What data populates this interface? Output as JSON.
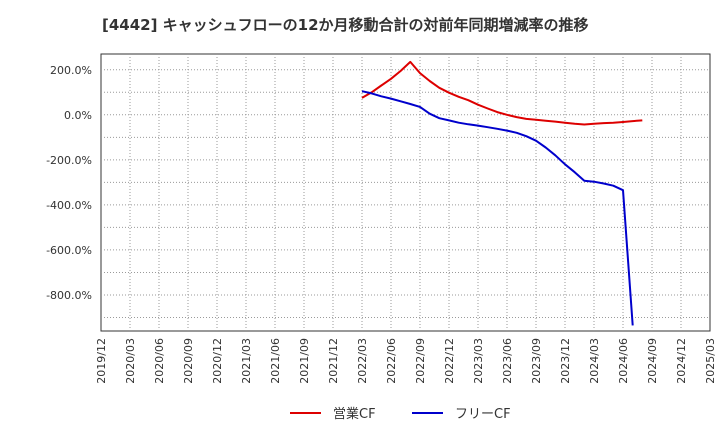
{
  "chart_data": {
    "type": "line",
    "title": "[4442]  キャッシュフローの12か月移動合計の対前年同期増減率の推移",
    "xlabel": "",
    "ylabel": "",
    "ylim": [
      -960,
      270
    ],
    "yticks": [
      200,
      0,
      -200,
      -400,
      -600,
      -800
    ],
    "ytick_labels": [
      "200.0%",
      "0.0%",
      "-200.0%",
      "-400.0%",
      "-600.0%",
      "-800.0%"
    ],
    "x_tick_labels": [
      "2019/12",
      "2020/03",
      "2020/06",
      "2020/09",
      "2020/12",
      "2021/03",
      "2021/06",
      "2021/09",
      "2021/12",
      "2022/03",
      "2022/06",
      "2022/09",
      "2022/12",
      "2023/03",
      "2023/06",
      "2023/09",
      "2023/12",
      "2024/03",
      "2024/06",
      "2024/09",
      "2024/12",
      "2025/03"
    ],
    "x_range_months": [
      0,
      63
    ],
    "grid": true,
    "legend_position": "bottom-center",
    "series": [
      {
        "name": "営業CF",
        "color": "#dd0000",
        "points": [
          [
            27,
            75
          ],
          [
            28,
            100
          ],
          [
            29,
            130
          ],
          [
            30,
            160
          ],
          [
            31,
            195
          ],
          [
            32,
            235
          ],
          [
            33,
            185
          ],
          [
            34,
            150
          ],
          [
            35,
            120
          ],
          [
            36,
            98
          ],
          [
            37,
            80
          ],
          [
            38,
            65
          ],
          [
            39,
            45
          ],
          [
            40,
            28
          ],
          [
            41,
            12
          ],
          [
            42,
            0
          ],
          [
            43,
            -10
          ],
          [
            44,
            -18
          ],
          [
            45,
            -22
          ],
          [
            46,
            -26
          ],
          [
            47,
            -30
          ],
          [
            48,
            -35
          ],
          [
            49,
            -40
          ],
          [
            50,
            -43
          ],
          [
            51,
            -40
          ],
          [
            52,
            -37
          ],
          [
            53,
            -35
          ],
          [
            54,
            -32
          ],
          [
            55,
            -28
          ],
          [
            56,
            -25
          ]
        ]
      },
      {
        "name": "フリーCF",
        "color": "#0000cc",
        "points": [
          [
            27,
            105
          ],
          [
            28,
            95
          ],
          [
            29,
            82
          ],
          [
            30,
            72
          ],
          [
            31,
            60
          ],
          [
            32,
            48
          ],
          [
            33,
            35
          ],
          [
            34,
            5
          ],
          [
            35,
            -15
          ],
          [
            36,
            -25
          ],
          [
            37,
            -35
          ],
          [
            38,
            -42
          ],
          [
            39,
            -48
          ],
          [
            40,
            -55
          ],
          [
            41,
            -62
          ],
          [
            42,
            -70
          ],
          [
            43,
            -80
          ],
          [
            44,
            -95
          ],
          [
            45,
            -115
          ],
          [
            46,
            -145
          ],
          [
            47,
            -180
          ],
          [
            48,
            -220
          ],
          [
            49,
            -255
          ],
          [
            50,
            -293
          ],
          [
            51,
            -297
          ],
          [
            52,
            -305
          ],
          [
            53,
            -315
          ],
          [
            54,
            -335
          ],
          [
            55,
            -935
          ]
        ]
      }
    ]
  }
}
